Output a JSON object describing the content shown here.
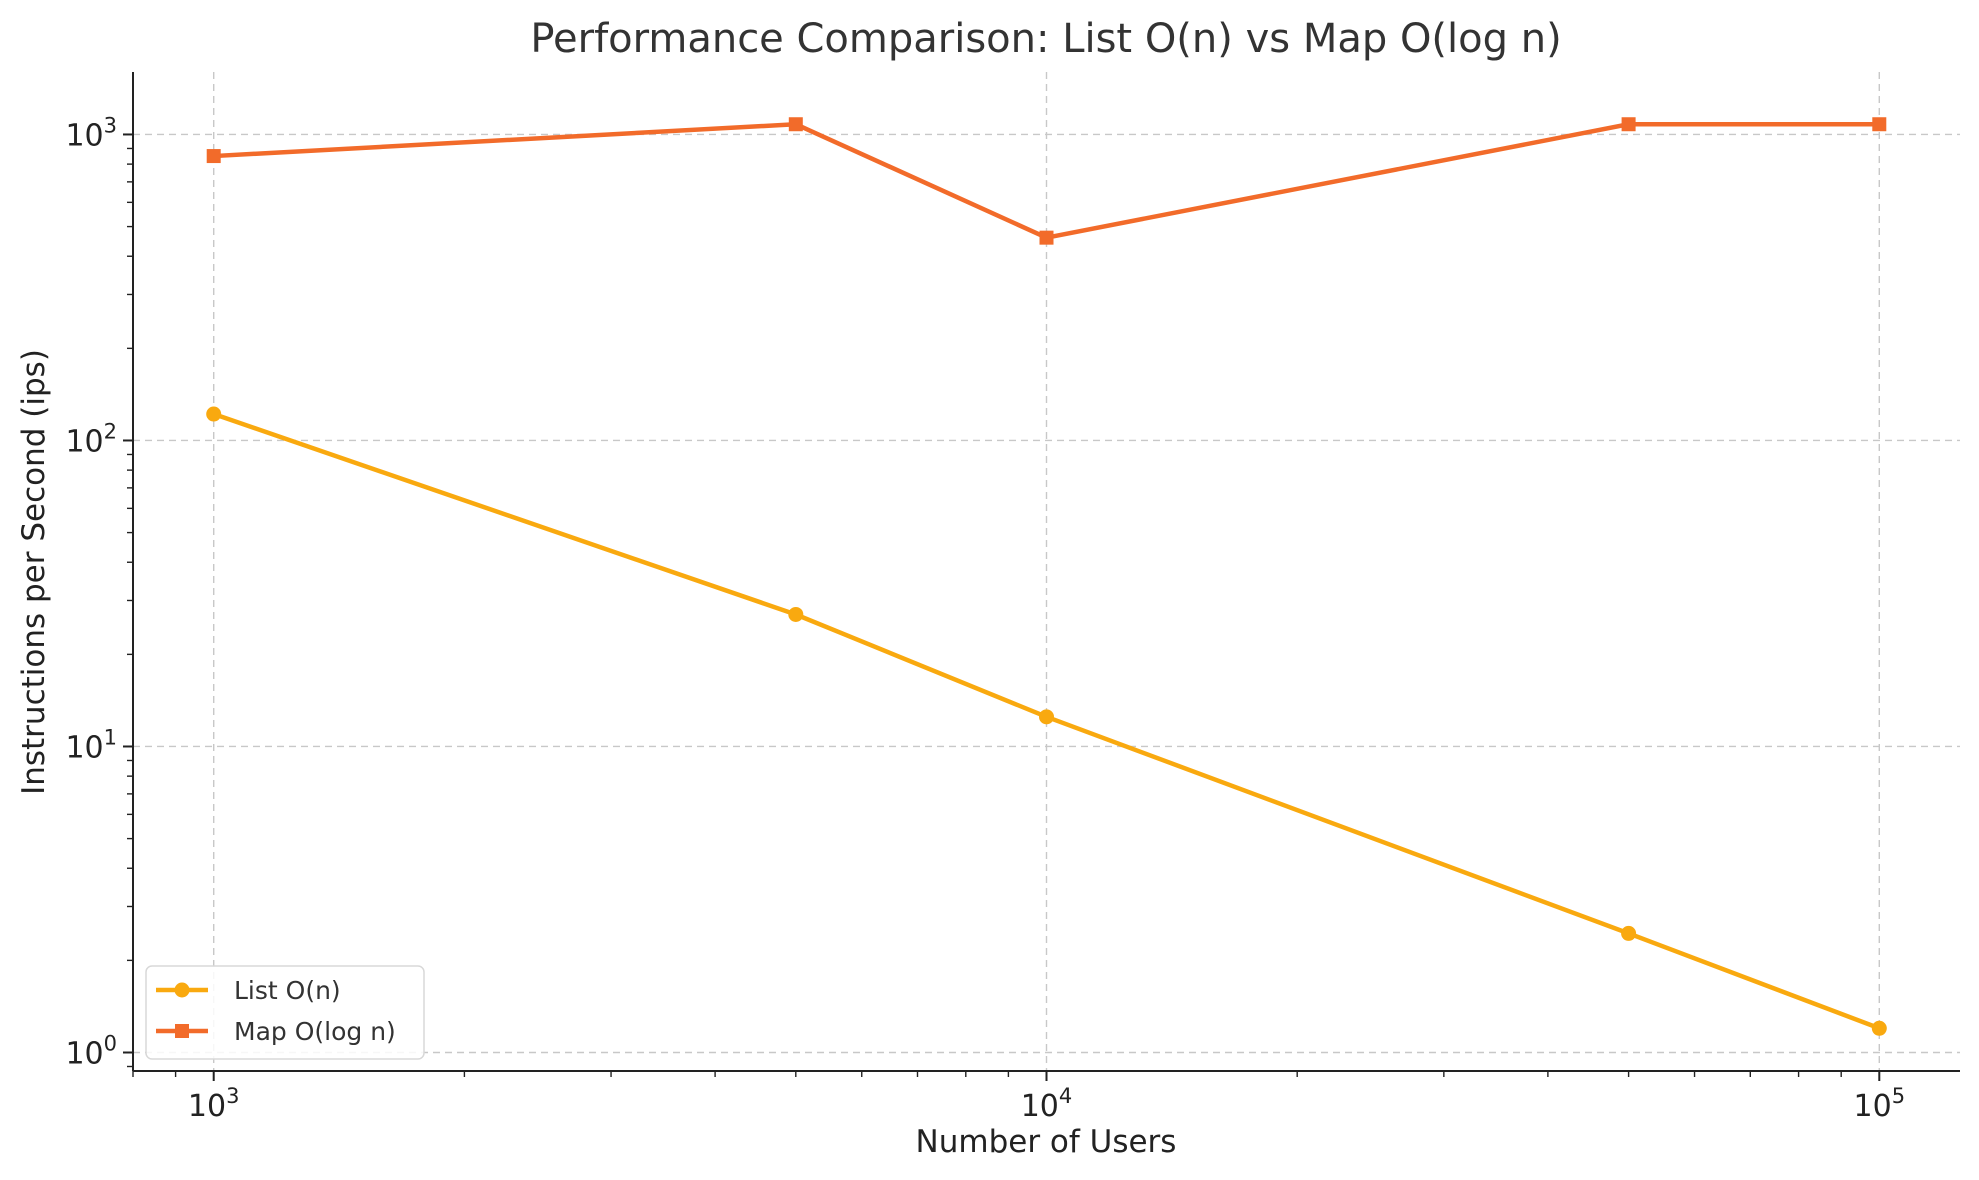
{
  "chart_data": {
    "type": "line",
    "title": "Performance Comparison: List O(n) vs Map O(log n)",
    "xlabel": "Number of Users",
    "ylabel": "Instructions per Second (ips)",
    "x_scale": "log",
    "y_scale": "log",
    "xlim": [
      800,
      125000
    ],
    "ylim": [
      0.87,
      1600
    ],
    "grid": true,
    "legend_position": "lower-left",
    "x": [
      1000,
      5000,
      10000,
      50000,
      100000
    ],
    "x_ticks": [
      {
        "base": "10",
        "exp": "3",
        "value": 1000
      },
      {
        "base": "10",
        "exp": "4",
        "value": 10000
      },
      {
        "base": "10",
        "exp": "5",
        "value": 100000
      }
    ],
    "y_ticks": [
      {
        "base": "10",
        "exp": "0",
        "value": 1
      },
      {
        "base": "10",
        "exp": "1",
        "value": 10
      },
      {
        "base": "10",
        "exp": "2",
        "value": 100
      },
      {
        "base": "10",
        "exp": "3",
        "value": 1000
      }
    ],
    "series": [
      {
        "name": "List O(n)",
        "color": "#f9a90f",
        "marker": "circle",
        "values": [
          122,
          27,
          12.5,
          2.45,
          1.2
        ]
      },
      {
        "name": "Map O(log n)",
        "color": "#f26b2a",
        "marker": "square",
        "values": [
          850,
          1080,
          460,
          1080,
          1080
        ]
      }
    ]
  }
}
